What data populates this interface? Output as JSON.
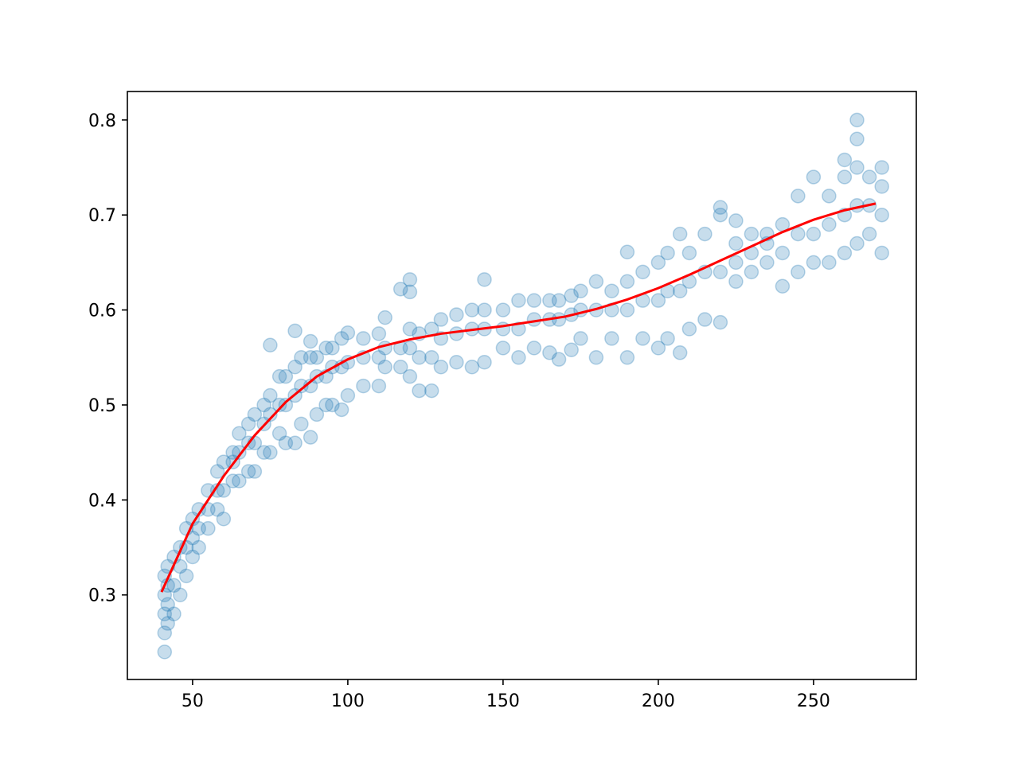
{
  "chart_data": {
    "type": "scatter",
    "xlim": [
      29.0,
      283.1
    ],
    "ylim": [
      0.211,
      0.83
    ],
    "xticks": [
      50,
      100,
      150,
      200,
      250
    ],
    "yticks": [
      0.3,
      0.4,
      0.5,
      0.6,
      0.7,
      0.8
    ],
    "series": [
      {
        "type": "scatter",
        "color": "#1f77b4",
        "x": [
          41,
          41,
          41,
          41,
          41,
          42,
          42,
          42,
          42,
          44,
          44,
          44,
          46,
          46,
          46,
          48,
          48,
          48,
          50,
          50,
          50,
          52,
          52,
          52,
          55,
          55,
          55,
          58,
          58,
          58,
          60,
          60,
          60,
          63,
          63,
          63,
          65,
          65,
          65,
          68,
          68,
          68,
          70,
          70,
          70,
          73,
          73,
          73,
          75,
          75,
          75,
          75,
          78,
          78,
          78,
          80,
          80,
          80,
          83,
          83,
          83,
          83,
          85,
          85,
          85,
          88,
          88,
          88,
          88,
          90,
          90,
          90,
          93,
          93,
          93,
          95,
          95,
          95,
          98,
          98,
          98,
          100,
          100,
          100,
          105,
          105,
          105,
          110,
          110,
          110,
          112,
          112,
          112,
          117,
          117,
          117,
          120,
          120,
          120,
          120,
          120,
          123,
          123,
          123,
          127,
          127,
          127,
          130,
          130,
          130,
          135,
          135,
          135,
          140,
          140,
          140,
          144,
          144,
          144,
          144,
          150,
          150,
          150,
          155,
          155,
          155,
          160,
          160,
          160,
          165,
          165,
          165,
          168,
          168,
          168,
          172,
          172,
          172,
          175,
          175,
          175,
          180,
          180,
          180,
          185,
          185,
          185,
          190,
          190,
          190,
          190,
          195,
          195,
          195,
          200,
          200,
          200,
          203,
          203,
          203,
          207,
          207,
          207,
          210,
          210,
          210,
          215,
          215,
          215,
          220,
          220,
          220,
          220,
          225,
          225,
          225,
          225,
          230,
          230,
          230,
          235,
          235,
          235,
          240,
          240,
          240,
          245,
          245,
          245,
          250,
          250,
          250,
          255,
          255,
          255,
          260,
          260,
          260,
          260,
          264,
          264,
          264,
          264,
          264,
          268,
          268,
          268,
          272,
          272,
          272,
          272
        ],
        "values": [
          0.24,
          0.26,
          0.28,
          0.3,
          0.32,
          0.27,
          0.29,
          0.31,
          0.33,
          0.28,
          0.31,
          0.34,
          0.3,
          0.33,
          0.35,
          0.32,
          0.35,
          0.37,
          0.34,
          0.36,
          0.38,
          0.35,
          0.37,
          0.39,
          0.37,
          0.39,
          0.41,
          0.39,
          0.41,
          0.43,
          0.38,
          0.41,
          0.44,
          0.42,
          0.44,
          0.45,
          0.42,
          0.45,
          0.47,
          0.43,
          0.46,
          0.48,
          0.43,
          0.46,
          0.49,
          0.45,
          0.48,
          0.5,
          0.45,
          0.49,
          0.51,
          0.563,
          0.47,
          0.5,
          0.53,
          0.46,
          0.5,
          0.53,
          0.46,
          0.51,
          0.54,
          0.578,
          0.48,
          0.52,
          0.55,
          0.466,
          0.52,
          0.55,
          0.567,
          0.49,
          0.53,
          0.55,
          0.5,
          0.53,
          0.56,
          0.5,
          0.54,
          0.56,
          0.495,
          0.54,
          0.57,
          0.51,
          0.545,
          0.576,
          0.52,
          0.55,
          0.57,
          0.52,
          0.55,
          0.575,
          0.54,
          0.56,
          0.592,
          0.54,
          0.56,
          0.622,
          0.53,
          0.56,
          0.58,
          0.632,
          0.619,
          0.515,
          0.55,
          0.575,
          0.515,
          0.55,
          0.58,
          0.54,
          0.57,
          0.59,
          0.545,
          0.575,
          0.595,
          0.54,
          0.58,
          0.6,
          0.545,
          0.58,
          0.6,
          0.632,
          0.56,
          0.58,
          0.6,
          0.55,
          0.58,
          0.61,
          0.56,
          0.59,
          0.61,
          0.555,
          0.59,
          0.61,
          0.548,
          0.59,
          0.61,
          0.558,
          0.595,
          0.615,
          0.57,
          0.6,
          0.62,
          0.55,
          0.6,
          0.63,
          0.57,
          0.6,
          0.62,
          0.55,
          0.6,
          0.63,
          0.661,
          0.57,
          0.61,
          0.64,
          0.56,
          0.61,
          0.65,
          0.57,
          0.62,
          0.66,
          0.555,
          0.62,
          0.68,
          0.58,
          0.63,
          0.66,
          0.59,
          0.64,
          0.68,
          0.587,
          0.64,
          0.7,
          0.708,
          0.63,
          0.65,
          0.67,
          0.694,
          0.64,
          0.66,
          0.68,
          0.65,
          0.67,
          0.68,
          0.625,
          0.66,
          0.69,
          0.64,
          0.68,
          0.72,
          0.65,
          0.68,
          0.74,
          0.65,
          0.69,
          0.72,
          0.66,
          0.7,
          0.74,
          0.758,
          0.67,
          0.71,
          0.75,
          0.78,
          0.8,
          0.68,
          0.71,
          0.74,
          0.66,
          0.7,
          0.73,
          0.75
        ]
      },
      {
        "type": "line",
        "color": "#ff0000",
        "x": [
          40,
          50,
          60,
          70,
          80,
          90,
          100,
          110,
          120,
          130,
          140,
          150,
          160,
          170,
          180,
          190,
          200,
          210,
          220,
          230,
          240,
          250,
          260,
          270
        ],
        "values": [
          0.303,
          0.375,
          0.425,
          0.468,
          0.503,
          0.53,
          0.548,
          0.561,
          0.569,
          0.575,
          0.579,
          0.583,
          0.588,
          0.593,
          0.601,
          0.611,
          0.623,
          0.637,
          0.652,
          0.667,
          0.682,
          0.695,
          0.705,
          0.712
        ]
      }
    ]
  }
}
